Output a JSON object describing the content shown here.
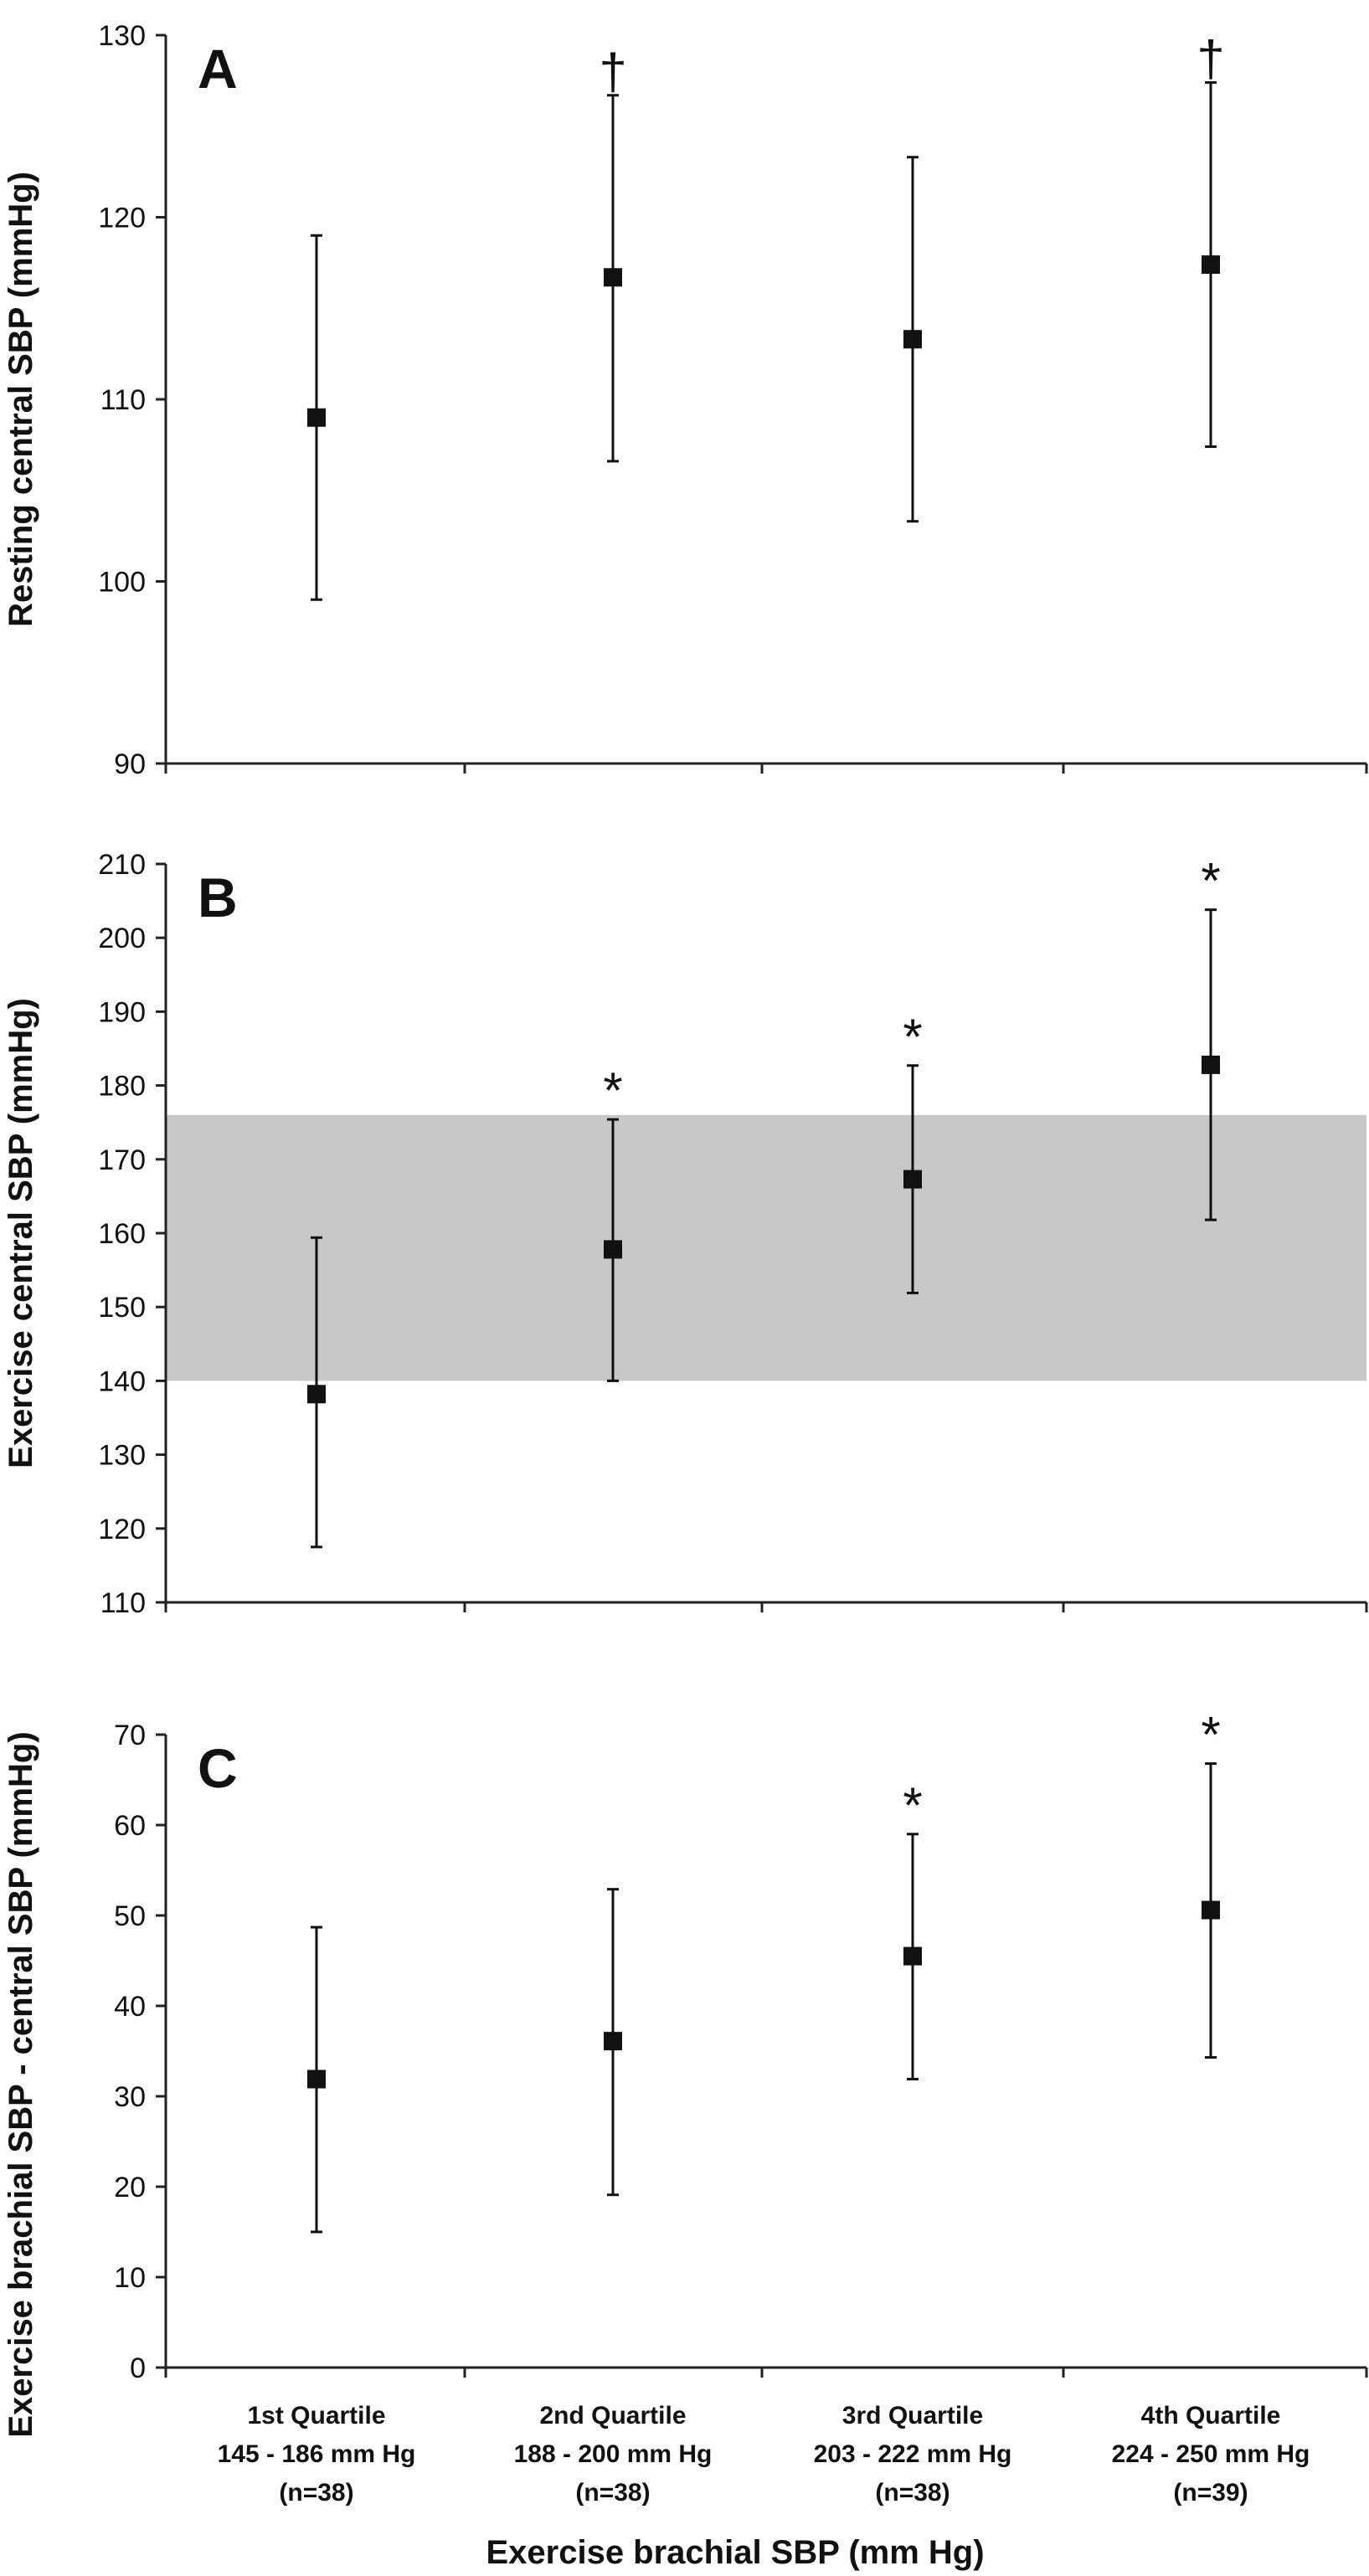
{
  "figure": {
    "xlabel": "Exercise brachial SBP (mm Hg)",
    "categories": [
      [
        "1st Quartile",
        "145 - 186 mm Hg",
        "(n=38)"
      ],
      [
        "2nd Quartile",
        "188 - 200 mm Hg",
        "(n=38)"
      ],
      [
        "3rd Quartile",
        "203 - 222 mm Hg",
        "(n=38)"
      ],
      [
        "4th Quartile",
        "224 - 250 mm Hg",
        "(n=39)"
      ]
    ]
  },
  "chart_data": [
    {
      "type": "scatter",
      "panel": "A",
      "ylabel": "Resting central SBP (mmHg)",
      "categories": [
        "1st Quartile",
        "2nd Quartile",
        "3rd Quartile",
        "4th Quartile"
      ],
      "ylim": [
        90,
        130
      ],
      "yticks": [
        90,
        100,
        110,
        120,
        130
      ],
      "values": [
        109,
        116.7,
        113.3,
        117.4
      ],
      "err_low": [
        99,
        106.6,
        103.3,
        107.4
      ],
      "err_high": [
        119,
        126.7,
        123.3,
        127.4
      ],
      "markers": [
        "",
        "†",
        "",
        "†"
      ]
    },
    {
      "type": "scatter",
      "panel": "B",
      "ylabel": "Exercise central SBP (mmHg)",
      "categories": [
        "1st Quartile",
        "2nd Quartile",
        "3rd Quartile",
        "4th Quartile"
      ],
      "ylim": [
        110,
        210
      ],
      "yticks": [
        110,
        120,
        130,
        140,
        150,
        160,
        170,
        180,
        190,
        200,
        210
      ],
      "band": [
        140,
        176
      ],
      "values": [
        138.2,
        157.8,
        167.3,
        182.8
      ],
      "err_low": [
        117.5,
        140,
        151.9,
        161.8
      ],
      "err_high": [
        159.4,
        175.4,
        182.7,
        203.8
      ],
      "markers": [
        "",
        "*",
        "*",
        "*"
      ]
    },
    {
      "type": "scatter",
      "panel": "C",
      "ylabel": "Exercise brachial SBP - central SBP (mmHg)",
      "categories": [
        "1st Quartile",
        "2nd Quartile",
        "3rd Quartile",
        "4th Quartile"
      ],
      "ylim": [
        0,
        70
      ],
      "yticks": [
        0,
        10,
        20,
        30,
        40,
        50,
        60,
        70
      ],
      "values": [
        31.9,
        36.1,
        45.5,
        50.6
      ],
      "err_low": [
        15,
        19.1,
        31.9,
        34.3
      ],
      "err_high": [
        48.7,
        52.9,
        59,
        66.8
      ],
      "markers": [
        "",
        "",
        "*",
        "*"
      ]
    }
  ]
}
